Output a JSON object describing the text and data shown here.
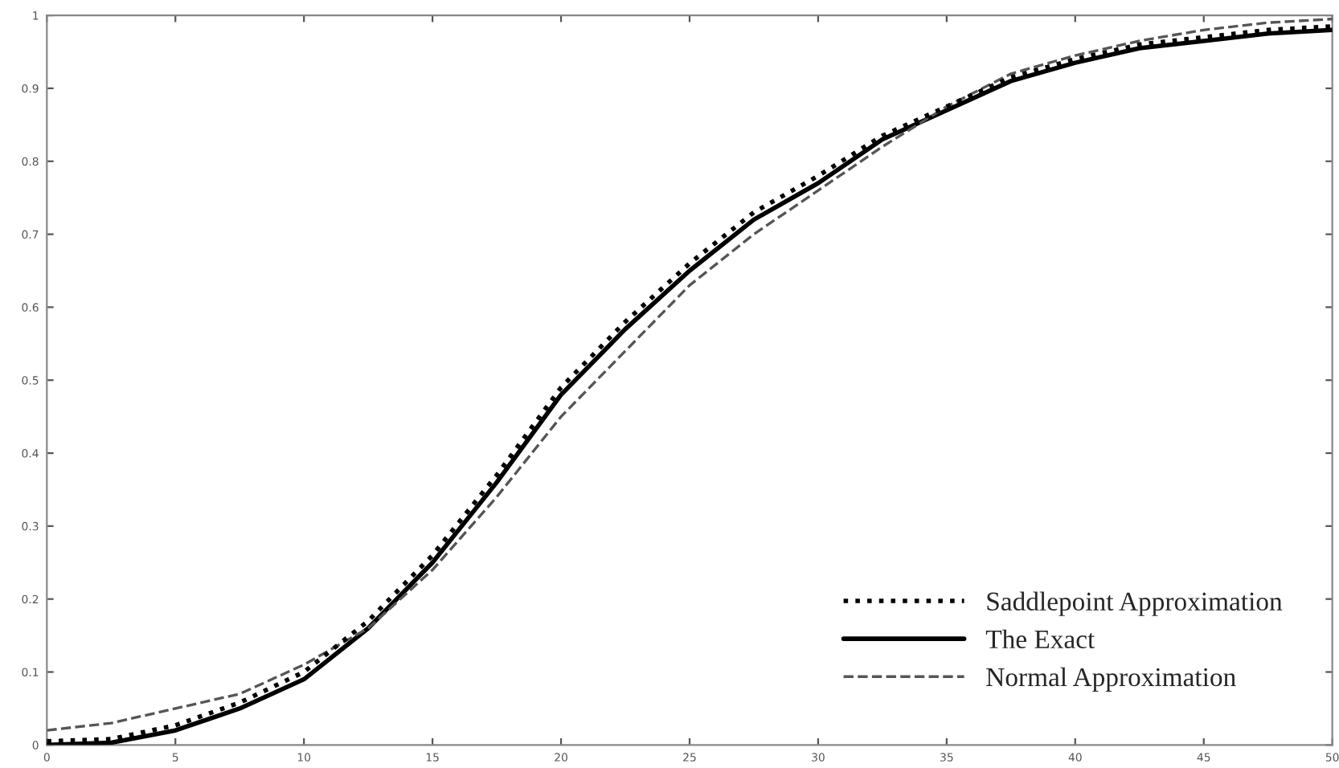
{
  "chart_data": {
    "type": "line",
    "x": [
      0,
      2.5,
      5,
      7.5,
      10,
      12.5,
      15,
      17.5,
      20,
      22.5,
      25,
      27.5,
      30,
      32.5,
      35,
      37.5,
      40,
      42.5,
      45,
      47.5,
      50
    ],
    "series": [
      {
        "name": "Saddlepoint Approximation",
        "color": "#000000",
        "line_style": "dotted",
        "values": [
          0.005,
          0.008,
          0.027,
          0.058,
          0.1,
          0.17,
          0.26,
          0.37,
          0.49,
          0.58,
          0.66,
          0.73,
          0.78,
          0.835,
          0.875,
          0.915,
          0.94,
          0.96,
          0.97,
          0.98,
          0.985
        ]
      },
      {
        "name": "The Exact",
        "color": "#000000",
        "line_style": "solid",
        "values": [
          0,
          0.003,
          0.02,
          0.05,
          0.09,
          0.16,
          0.25,
          0.36,
          0.48,
          0.57,
          0.65,
          0.72,
          0.77,
          0.83,
          0.87,
          0.91,
          0.935,
          0.955,
          0.965,
          0.975,
          0.98
        ]
      },
      {
        "name": "Normal Approximation",
        "color": "#555555",
        "line_style": "dashed",
        "values": [
          0.02,
          0.03,
          0.05,
          0.07,
          0.11,
          0.16,
          0.24,
          0.34,
          0.45,
          0.54,
          0.63,
          0.7,
          0.76,
          0.82,
          0.875,
          0.92,
          0.945,
          0.965,
          0.98,
          0.99,
          0.995
        ]
      }
    ],
    "xlim": [
      0,
      50
    ],
    "ylim": [
      0,
      1
    ],
    "xticks": [
      0,
      5,
      10,
      15,
      20,
      25,
      30,
      35,
      40,
      45,
      50
    ],
    "yticks": [
      0,
      0.1,
      0.2,
      0.3,
      0.4,
      0.5,
      0.6,
      0.7,
      0.8,
      0.9,
      1
    ],
    "legend": "lower right",
    "grid": false,
    "marker": "none"
  }
}
